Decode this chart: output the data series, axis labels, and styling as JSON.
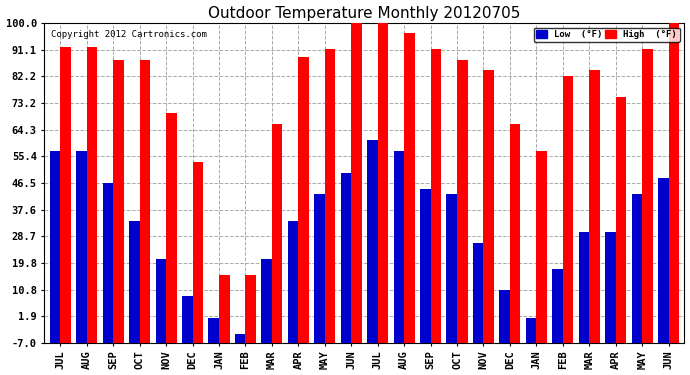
{
  "title": "Outdoor Temperature Monthly 20120705",
  "copyright": "Copyright 2012 Cartronics.com",
  "months": [
    "JUL",
    "AUG",
    "SEP",
    "OCT",
    "NOV",
    "DEC",
    "JAN",
    "FEB",
    "MAR",
    "APR",
    "MAY",
    "JUN",
    "JUL",
    "AUG",
    "SEP",
    "OCT",
    "NOV",
    "DEC",
    "JAN",
    "FEB",
    "MAR",
    "APR",
    "MAY",
    "JUN"
  ],
  "high_vals": [
    91.9,
    91.9,
    87.8,
    87.8,
    69.8,
    53.6,
    15.8,
    15.8,
    66.2,
    88.7,
    91.4,
    100.4,
    103.1,
    96.8,
    91.4,
    87.8,
    84.2,
    66.2,
    57.2,
    82.4,
    84.2,
    75.2,
    91.4,
    100.4
  ],
  "low_vals": [
    57.2,
    57.2,
    46.4,
    33.8,
    21.2,
    8.6,
    1.4,
    -4.0,
    21.2,
    33.8,
    42.8,
    50.0,
    60.8,
    57.2,
    44.6,
    42.8,
    26.6,
    10.8,
    1.4,
    17.6,
    30.2,
    30.2,
    42.8,
    48.2
  ],
  "yticks": [
    -7.0,
    1.9,
    10.8,
    19.8,
    28.7,
    37.6,
    46.5,
    55.4,
    64.3,
    73.2,
    82.2,
    91.1,
    100.0
  ],
  "ylim": [
    -7.0,
    100.0
  ],
  "bar_color_high": "#ff0000",
  "bar_color_low": "#0000cc",
  "background_color": "#ffffff",
  "grid_color": "#aaaaaa",
  "title_fontsize": 11,
  "tick_fontsize": 7.5,
  "legend_label_low": "Low  (°F)",
  "legend_label_high": "High  (°F)",
  "bar_bottom": -7.0
}
